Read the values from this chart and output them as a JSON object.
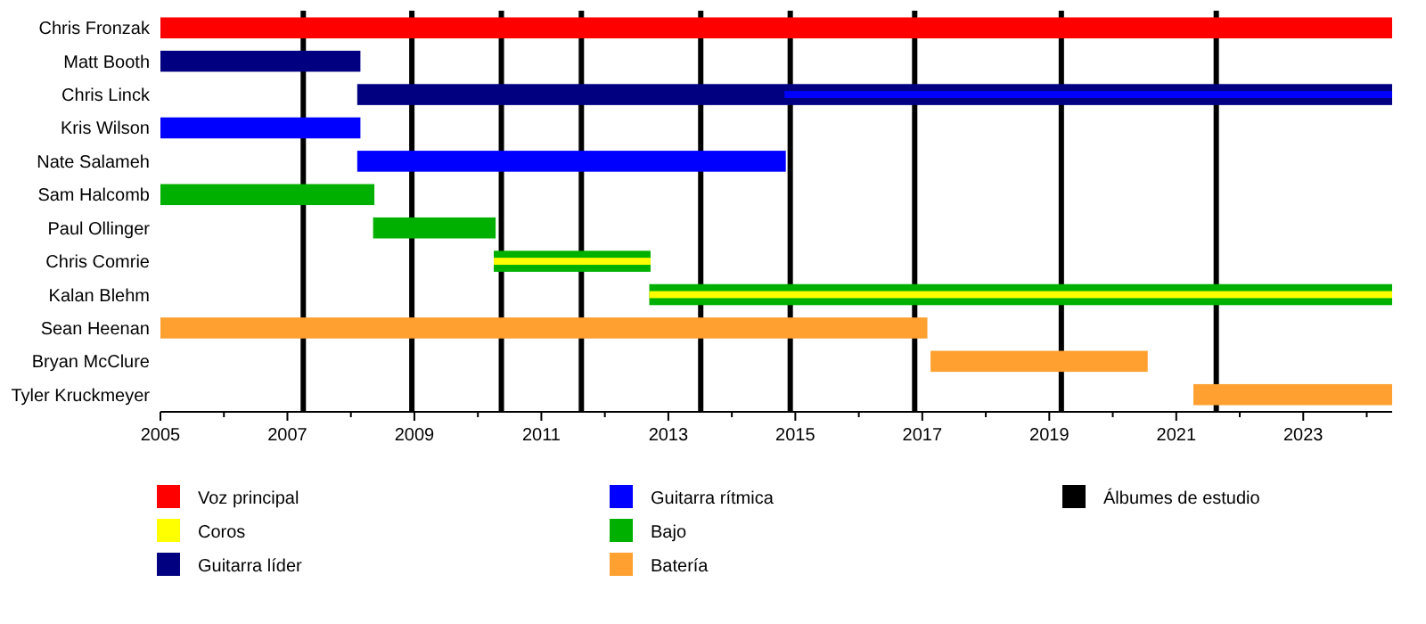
{
  "chart_data": {
    "type": "bar",
    "orientation": "horizontal",
    "categories": [
      "Chris Fronzak",
      "Matt Booth",
      "Chris Linck",
      "Kris Wilson",
      "Nate Salameh",
      "Sam Halcomb",
      "Paul Ollinger",
      "Chris Comrie",
      "Kalan Blehm",
      "Sean Heenan",
      "Bryan McClure",
      "Tyler Kruckmeyer"
    ],
    "series": [
      {
        "name": "Voz principal",
        "color": "#ff0000",
        "base": [
          2005,
          null,
          null,
          null,
          null,
          null,
          null,
          null,
          null,
          null,
          null,
          null
        ],
        "values": [
          19.4,
          null,
          null,
          null,
          null,
          null,
          null,
          null,
          null,
          null,
          null,
          null
        ]
      },
      {
        "name": "Coros",
        "color": "#ffff00",
        "base": [
          null,
          null,
          null,
          null,
          null,
          null,
          null,
          2010.25,
          2012.7,
          null,
          null,
          null
        ],
        "values": [
          null,
          null,
          null,
          null,
          null,
          null,
          null,
          2.47,
          11.7,
          null,
          null,
          null
        ]
      },
      {
        "name": "Guitarra líder",
        "color": "#000080",
        "base": [
          null,
          2005,
          2008.1,
          null,
          null,
          null,
          null,
          null,
          null,
          null,
          null,
          null
        ],
        "values": [
          null,
          3.15,
          16.3,
          null,
          null,
          null,
          null,
          null,
          null,
          null,
          null,
          null
        ]
      },
      {
        "name": "Guitarra rítmica",
        "color": "#0000ff",
        "base": [
          null,
          null,
          2014.83,
          2005,
          2008.1,
          null,
          null,
          null,
          null,
          null,
          null,
          null
        ],
        "values": [
          null,
          null,
          9.57,
          3.15,
          6.75,
          null,
          null,
          null,
          null,
          null,
          null,
          null
        ]
      },
      {
        "name": "Bajo",
        "color": "#00b000",
        "base": [
          null,
          null,
          null,
          null,
          null,
          2005,
          2008.35,
          2010.25,
          2012.7,
          null,
          null,
          null
        ],
        "values": [
          null,
          null,
          null,
          null,
          null,
          3.37,
          1.93,
          2.47,
          11.7,
          null,
          null,
          null
        ]
      },
      {
        "name": "Batería",
        "color": "#ffa030",
        "base": [
          null,
          null,
          null,
          null,
          null,
          null,
          null,
          null,
          null,
          2005,
          2017.13,
          2021.27
        ],
        "values": [
          null,
          null,
          null,
          null,
          null,
          null,
          null,
          null,
          null,
          12.08,
          3.42,
          3.13
        ]
      }
    ],
    "xlim": [
      2005,
      2024.4
    ],
    "xticks": [
      2005,
      {
        "value": 2006,
        "label": null
      },
      2007,
      {
        "value": 2008,
        "label": null
      },
      2009,
      {
        "value": 2010,
        "label": null
      },
      2011,
      {
        "value": 2012,
        "label": null
      },
      2013,
      {
        "value": 2014,
        "label": null
      },
      2015,
      {
        "value": 2016,
        "label": null
      },
      2017,
      {
        "value": 2018,
        "label": null
      },
      2019,
      {
        "value": 2020,
        "label": null
      },
      2021,
      {
        "value": 2022,
        "label": null
      },
      2023,
      {
        "value": 2024,
        "label": null
      }
    ],
    "ref_lines": [
      {
        "axis": "x",
        "value": 2007.25,
        "color": "#000000",
        "label": "Álbumes de estudio"
      },
      {
        "axis": "x",
        "value": 2008.96,
        "color": "#000000"
      },
      {
        "axis": "x",
        "value": 2010.37,
        "color": "#000000"
      },
      {
        "axis": "x",
        "value": 2011.63,
        "color": "#000000"
      },
      {
        "axis": "x",
        "value": 2013.51,
        "color": "#000000"
      },
      {
        "axis": "x",
        "value": 2014.92,
        "color": "#000000"
      },
      {
        "axis": "x",
        "value": 2016.88,
        "color": "#000000"
      },
      {
        "axis": "x",
        "value": 2019.19,
        "color": "#000000"
      },
      {
        "axis": "x",
        "value": 2021.63,
        "color": "#000000"
      }
    ],
    "legend": "bottom"
  }
}
